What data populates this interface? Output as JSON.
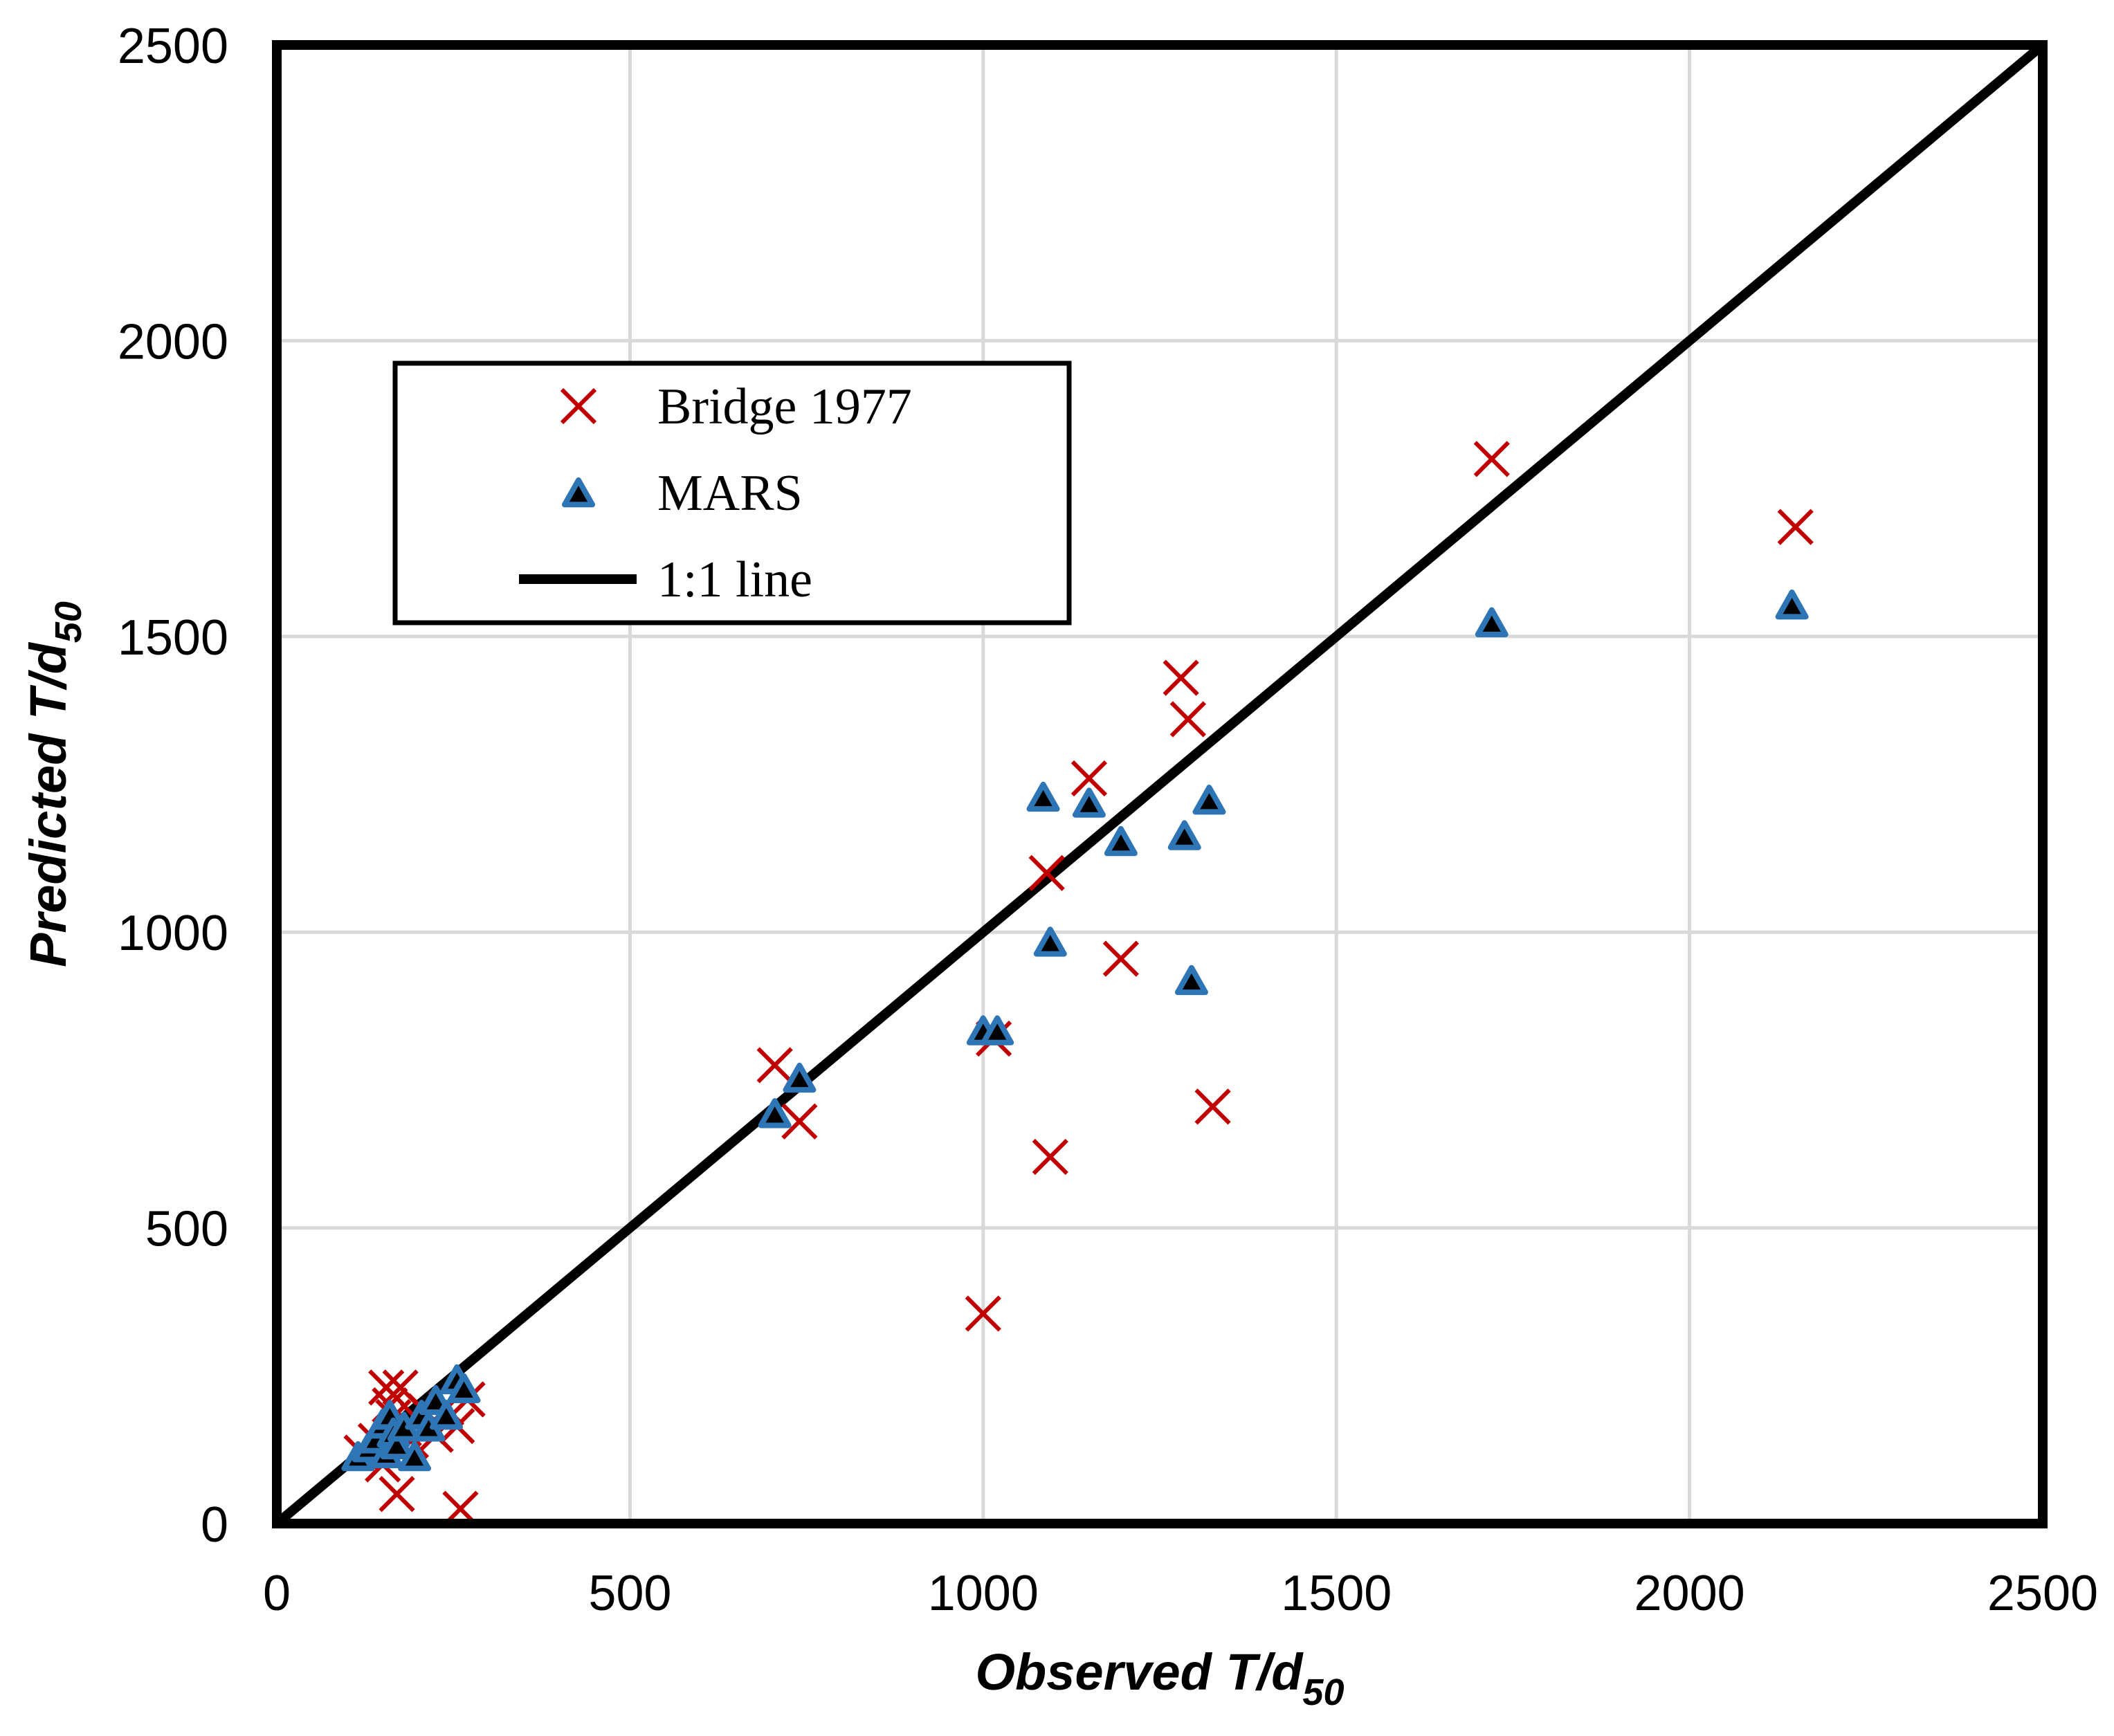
{
  "chart_data": {
    "type": "scatter",
    "title": "",
    "xlabel": {
      "main": "Observed T/d",
      "sub": "50"
    },
    "ylabel": {
      "main": "Predicted T/d",
      "sub": "50"
    },
    "xlim": [
      0,
      2500
    ],
    "ylim": [
      0,
      2500
    ],
    "xticks": [
      "0",
      "500",
      "1000",
      "1500",
      "2000",
      "2500"
    ],
    "yticks": [
      "0",
      "500",
      "1000",
      "1500",
      "2000",
      "2500"
    ],
    "xtick_values": [
      0,
      500,
      1000,
      1500,
      2000,
      2500
    ],
    "ytick_values": [
      0,
      500,
      1000,
      1500,
      2000,
      2500
    ],
    "grid": true,
    "legend_position": "upper-left",
    "colors": {
      "bridge": "#c00000",
      "mars_fill": "#000000",
      "mars_edge": "#2e75b6",
      "line": "#000000",
      "grid": "#d9d9d9",
      "frame": "#000000"
    },
    "series": [
      {
        "name": "Bridge 1977",
        "marker": "x",
        "points": [
          [
            120,
            120
          ],
          [
            140,
            140
          ],
          [
            150,
            100
          ],
          [
            155,
            230
          ],
          [
            160,
            200
          ],
          [
            165,
            180
          ],
          [
            170,
            50
          ],
          [
            175,
            230
          ],
          [
            180,
            160
          ],
          [
            190,
            140
          ],
          [
            200,
            175
          ],
          [
            210,
            190
          ],
          [
            225,
            150
          ],
          [
            240,
            195
          ],
          [
            255,
            165
          ],
          [
            260,
            25
          ],
          [
            270,
            210
          ],
          [
            705,
            775
          ],
          [
            740,
            680
          ],
          [
            1000,
            355
          ],
          [
            1015,
            820
          ],
          [
            1090,
            1100
          ],
          [
            1095,
            620
          ],
          [
            1150,
            1260
          ],
          [
            1195,
            955
          ],
          [
            1280,
            1430
          ],
          [
            1290,
            1360
          ],
          [
            1325,
            705
          ],
          [
            1720,
            1800
          ],
          [
            2150,
            1685
          ]
        ]
      },
      {
        "name": "MARS",
        "marker": "triangle",
        "points": [
          [
            115,
            110
          ],
          [
            130,
            125
          ],
          [
            140,
            140
          ],
          [
            150,
            165
          ],
          [
            155,
            115
          ],
          [
            160,
            180
          ],
          [
            165,
            150
          ],
          [
            170,
            130
          ],
          [
            180,
            160
          ],
          [
            195,
            110
          ],
          [
            205,
            180
          ],
          [
            215,
            160
          ],
          [
            225,
            205
          ],
          [
            240,
            180
          ],
          [
            255,
            240
          ],
          [
            265,
            225
          ],
          [
            705,
            690
          ],
          [
            740,
            750
          ],
          [
            1000,
            830
          ],
          [
            1020,
            830
          ],
          [
            1085,
            1225
          ],
          [
            1095,
            980
          ],
          [
            1150,
            1215
          ],
          [
            1195,
            1150
          ],
          [
            1285,
            1160
          ],
          [
            1295,
            915
          ],
          [
            1320,
            1220
          ],
          [
            1720,
            1520
          ],
          [
            2145,
            1550
          ]
        ]
      },
      {
        "name": "1:1 line",
        "marker": "line",
        "points": [
          [
            0,
            0
          ],
          [
            2500,
            2500
          ]
        ]
      }
    ]
  }
}
